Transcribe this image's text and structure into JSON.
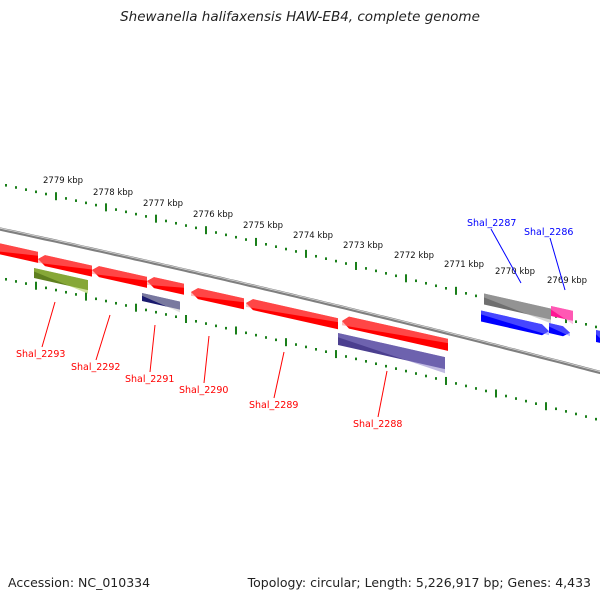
{
  "title": "Shewanella halifaxensis HAW-EB4, complete genome",
  "footer": {
    "accession": "Accession: NC_010334",
    "summary": "Topology: circular; Length: 5,226,917 bp; Genes: 4,433"
  },
  "colors": {
    "forward": "#0000ff",
    "reverse": "#ff0000",
    "backbone": "#7f7f7f",
    "ticks": "#1a7f1a"
  },
  "kbp_labels": [
    "2779 kbp",
    "2778 kbp",
    "2777 kbp",
    "2776 kbp",
    "2775 kbp",
    "2774 kbp",
    "2773 kbp",
    "2772 kbp",
    "2771 kbp",
    "2770 kbp",
    "2769 kbp"
  ],
  "gene_labels": [
    {
      "text": "Shal_2293",
      "strand": "reverse"
    },
    {
      "text": "Shal_2292",
      "strand": "reverse"
    },
    {
      "text": "Shal_2291",
      "strand": "reverse"
    },
    {
      "text": "Shal_2290",
      "strand": "reverse"
    },
    {
      "text": "Shal_2289",
      "strand": "reverse"
    },
    {
      "text": "Shal_2288",
      "strand": "reverse"
    },
    {
      "text": "Shal_2287",
      "strand": "forward"
    },
    {
      "text": "Shal_2286",
      "strand": "forward"
    }
  ]
}
